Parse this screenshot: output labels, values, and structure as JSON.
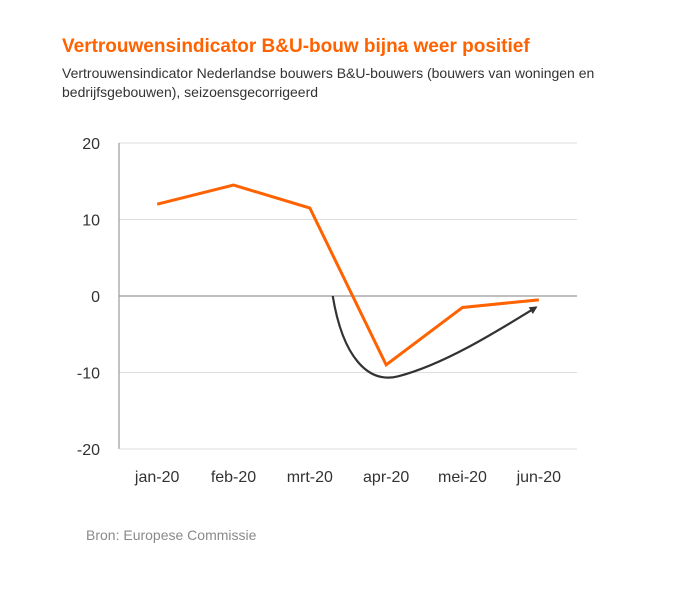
{
  "title": "Vertrouwensindicator B&U-bouw  bijna weer positief",
  "subtitle": "Vertrouwensindicator Nederlandse bouwers B&U-bouwers (bouwers van woningen en bedrijfsgebouwen), seizoensgecorrigeerd",
  "source": "Bron: Europese Commissie",
  "colors": {
    "series": "#ff6200",
    "arrow": "#333333",
    "grid": "#dddddd",
    "axis": "#999999",
    "title": "#ff6200"
  },
  "chart_data": {
    "type": "line",
    "categories": [
      "jan-20",
      "feb-20",
      "mrt-20",
      "apr-20",
      "mei-20",
      "jun-20"
    ],
    "series": [
      {
        "name": "",
        "values": [
          12,
          14.5,
          11.5,
          -9,
          -1.5,
          -0.5
        ]
      }
    ],
    "ylim": [
      -20,
      20
    ],
    "yticks": [
      20,
      10,
      0,
      -10,
      -20
    ],
    "grid": true,
    "legend": "none",
    "annotation": {
      "type": "curved-arrow",
      "description": "recovery trend arrow"
    }
  }
}
